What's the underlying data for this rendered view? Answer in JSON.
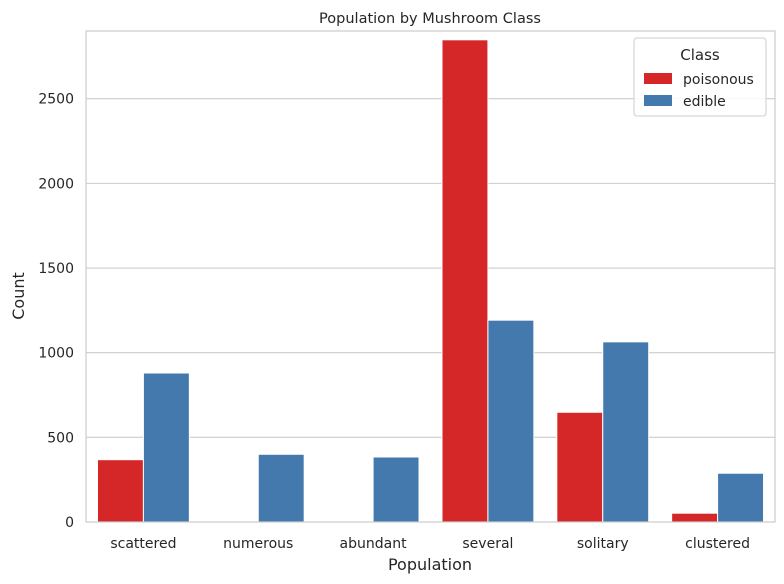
{
  "chart_data": {
    "type": "bar",
    "title": "Population by Mushroom Class",
    "xlabel": "Population",
    "ylabel": "Count",
    "categories": [
      "scattered",
      "numerous",
      "abundant",
      "several",
      "solitary",
      "clustered"
    ],
    "series": [
      {
        "name": "poisonous",
        "color": "#d62728",
        "values": [
          368,
          0,
          0,
          2848,
          648,
          52
        ]
      },
      {
        "name": "edible",
        "color": "#4479ad",
        "values": [
          880,
          400,
          384,
          1192,
          1064,
          288
        ]
      }
    ],
    "ylim": [
      0,
      2900
    ],
    "yticks": [
      0,
      500,
      1000,
      1500,
      2000,
      2500
    ],
    "grid": true,
    "legend": {
      "title": "Class",
      "placement": "top-right"
    }
  }
}
